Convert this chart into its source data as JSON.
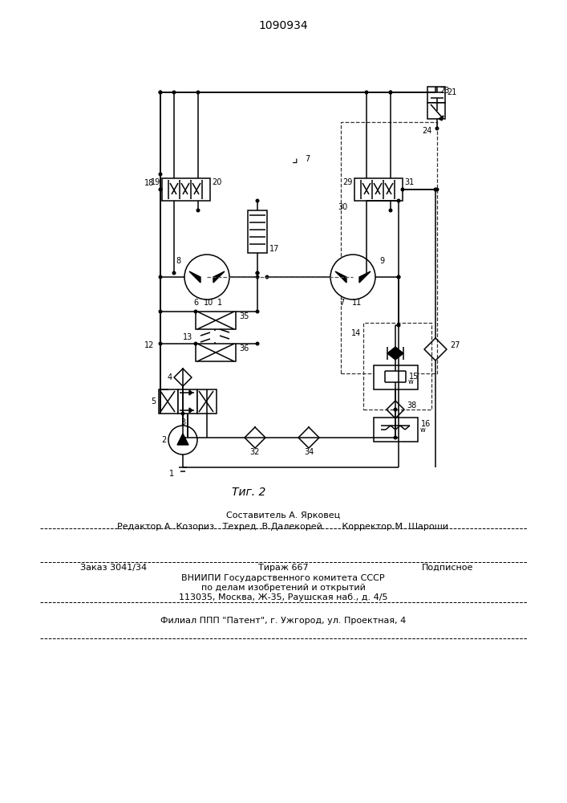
{
  "title": "1090934",
  "fig_caption": "Τиг. 2",
  "bg_color": "#ffffff",
  "lc": "#000000",
  "footer": {
    "line1": "Составитель А. Ярковец",
    "line2": "Редактор А. Козориз   Техред  В.Далекорей       Корректор М. Шароши",
    "line3a": "Заказ 3041/34",
    "line3b": "Тираж 667",
    "line3c": "Подписное",
    "line4": "ВНИИПИ Государственного комитета СССР",
    "line5": "по делам изобретений и открытий",
    "line6": "113035, Москва, Ж-35, Раушская наб., д. 4/5",
    "line7": "Филиал ППП \"Патент\", г. Ужгород, ул. Проектная, 4"
  }
}
